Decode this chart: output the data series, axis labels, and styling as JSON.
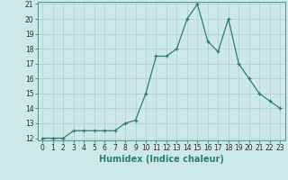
{
  "x": [
    0,
    1,
    2,
    3,
    4,
    5,
    6,
    7,
    8,
    9,
    10,
    11,
    12,
    13,
    14,
    15,
    16,
    17,
    18,
    19,
    20,
    21,
    22,
    23
  ],
  "y": [
    12,
    12,
    12,
    12.5,
    12.5,
    12.5,
    12.5,
    12.5,
    13,
    13.2,
    15,
    17.5,
    17.5,
    18,
    20,
    21,
    18.5,
    17.8,
    20,
    17,
    16,
    15,
    14.5,
    14
  ],
  "line_color": "#2e7d6e",
  "marker": "+",
  "marker_size": 3.5,
  "bg_color": "#cce8e8",
  "grid_color": "#b0cccc",
  "xlabel": "Humidex (Indice chaleur)",
  "ylim": [
    12,
    21
  ],
  "xlim": [
    -0.5,
    23.5
  ],
  "yticks": [
    12,
    13,
    14,
    15,
    16,
    17,
    18,
    19,
    20,
    21
  ],
  "xticks": [
    0,
    1,
    2,
    3,
    4,
    5,
    6,
    7,
    8,
    9,
    10,
    11,
    12,
    13,
    14,
    15,
    16,
    17,
    18,
    19,
    20,
    21,
    22,
    23
  ],
  "tick_label_fontsize": 5.5,
  "xlabel_fontsize": 7.0
}
